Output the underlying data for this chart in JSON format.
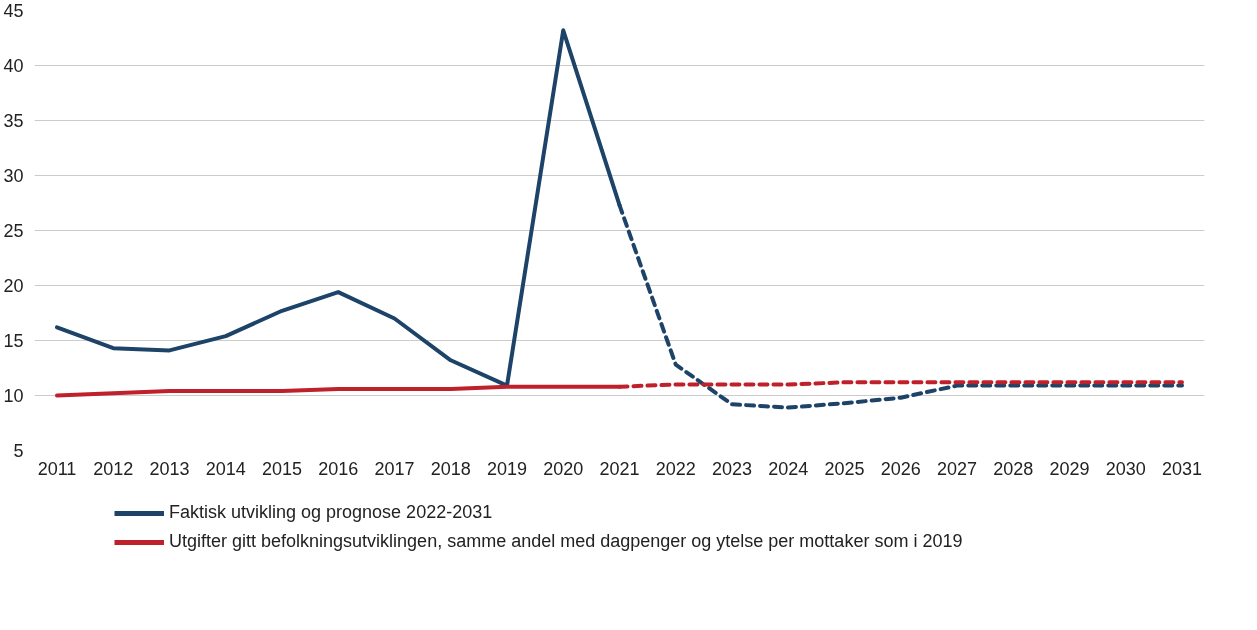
{
  "chart_data": {
    "type": "line",
    "xlim": [
      2010.6,
      2031.4
    ],
    "xticks": [
      2011,
      2012,
      2013,
      2014,
      2015,
      2016,
      2017,
      2018,
      2019,
      2020,
      2021,
      2022,
      2023,
      2024,
      2025,
      2026,
      2027,
      2028,
      2029,
      2030,
      2031
    ],
    "ylim": [
      5,
      45
    ],
    "yticks": [
      5,
      10,
      15,
      20,
      25,
      30,
      35,
      40,
      45
    ],
    "grid": "y",
    "legend": "bottom",
    "marker": "none",
    "series": [
      {
        "name": "Faktisk utvikling og prognose 2022-2031",
        "color": "#1d4468",
        "line_style": "solid",
        "x": [
          2011,
          2012,
          2013,
          2014,
          2015,
          2016,
          2017,
          2018,
          2019,
          2020,
          2021
        ],
        "values": [
          16.2,
          14.3,
          14.1,
          15.4,
          17.7,
          19.4,
          17.0,
          13.2,
          10.9,
          43.2,
          27.3
        ]
      },
      {
        "color": "#1d4468",
        "line_style": "dashed",
        "x": [
          2021,
          2022,
          2023,
          2024,
          2025,
          2026,
          2027,
          2028,
          2029,
          2030,
          2031
        ],
        "values": [
          27.3,
          12.8,
          9.2,
          8.9,
          9.3,
          9.8,
          10.9,
          10.9,
          10.9,
          10.9,
          10.9
        ]
      },
      {
        "name": "Utgifter gitt befolkningsutviklingen, samme andel med dagpenger og ytelse per mottaker som i 2019",
        "color": "#c0202a",
        "line_style": "solid",
        "x": [
          2011,
          2012,
          2013,
          2014,
          2015,
          2016,
          2017,
          2018,
          2019,
          2020,
          2021
        ],
        "values": [
          10.0,
          10.2,
          10.4,
          10.4,
          10.4,
          10.6,
          10.6,
          10.6,
          10.8,
          10.8,
          10.8
        ]
      },
      {
        "color": "#c0202a",
        "line_style": "dashed",
        "x": [
          2021,
          2022,
          2023,
          2024,
          2025,
          2026,
          2027,
          2028,
          2029,
          2030,
          2031
        ],
        "values": [
          10.8,
          11.0,
          11.0,
          11.0,
          11.2,
          11.2,
          11.2,
          11.2,
          11.2,
          11.2,
          11.2
        ]
      }
    ]
  }
}
